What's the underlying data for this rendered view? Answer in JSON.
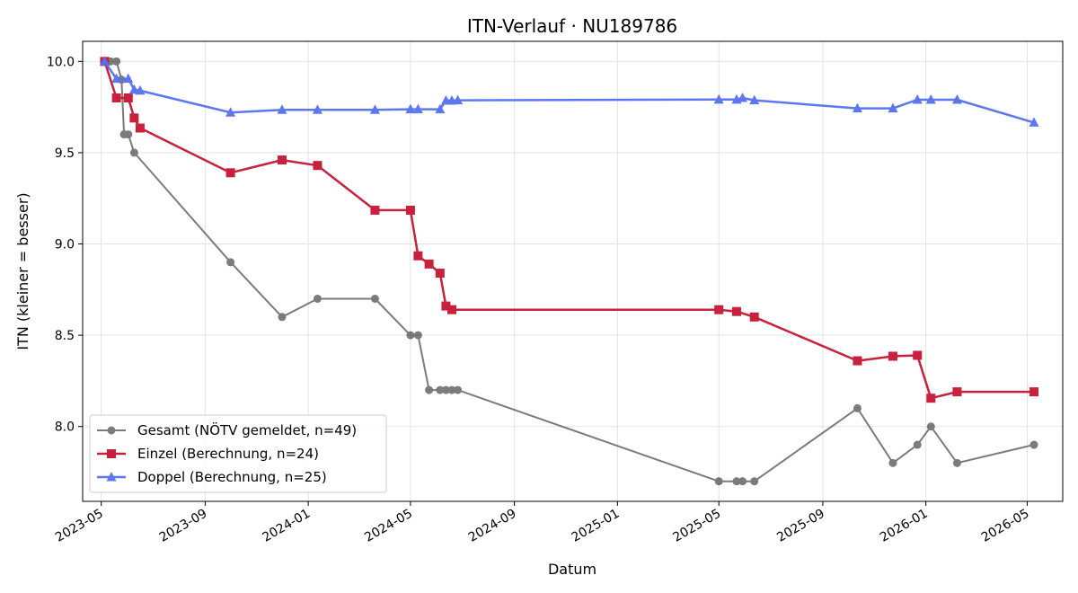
{
  "chart_data": {
    "type": "line",
    "title": "ITN-Verlauf · NU189786",
    "xlabel": "Datum",
    "ylabel": "ITN  (kleiner = besser)",
    "xlim": [
      "2023-04-09",
      "2026-06-12"
    ],
    "ylim": [
      7.59,
      10.11
    ],
    "x_ticks": [
      "2023-05",
      "2023-09",
      "2024-01",
      "2024-05",
      "2024-09",
      "2025-01",
      "2025-05",
      "2025-09",
      "2026-01",
      "2026-05"
    ],
    "y_ticks": [
      8.0,
      8.5,
      9.0,
      9.5,
      10.0
    ],
    "grid": true,
    "legend_position": "lower-left",
    "series": [
      {
        "name": "Gesamt (NÖTV gemeldet, n=49)",
        "color": "#444444",
        "marker": "circle",
        "points": [
          [
            "2023-05-05",
            10.0
          ],
          [
            "2023-05-12",
            10.0
          ],
          [
            "2023-05-19",
            10.0
          ],
          [
            "2023-05-25",
            9.9
          ],
          [
            "2023-05-28",
            9.6
          ],
          [
            "2023-06-02",
            9.6
          ],
          [
            "2023-06-09",
            9.5
          ],
          [
            "2023-10-01",
            8.9
          ],
          [
            "2023-12-01",
            8.6
          ],
          [
            "2024-01-12",
            8.7
          ],
          [
            "2024-03-20",
            8.7
          ],
          [
            "2024-05-01",
            8.5
          ],
          [
            "2024-05-10",
            8.5
          ],
          [
            "2024-05-23",
            8.2
          ],
          [
            "2024-06-05",
            8.2
          ],
          [
            "2024-06-12",
            8.2
          ],
          [
            "2024-06-19",
            8.2
          ],
          [
            "2024-06-26",
            8.2
          ],
          [
            "2025-05-01",
            7.7
          ],
          [
            "2025-05-22",
            7.7
          ],
          [
            "2025-05-29",
            7.7
          ],
          [
            "2025-06-12",
            7.7
          ],
          [
            "2025-10-12",
            8.1
          ],
          [
            "2025-11-23",
            7.8
          ],
          [
            "2025-12-22",
            7.9
          ],
          [
            "2026-01-07",
            8.0
          ],
          [
            "2026-02-07",
            7.8
          ],
          [
            "2026-05-09",
            7.9
          ]
        ]
      },
      {
        "name": "Einzel (Berechnung, n=24)",
        "color": "#c8203d",
        "marker": "square",
        "points": [
          [
            "2023-05-05",
            10.0
          ],
          [
            "2023-05-19",
            9.8
          ],
          [
            "2023-06-02",
            9.8
          ],
          [
            "2023-06-09",
            9.69
          ],
          [
            "2023-06-16",
            9.635
          ],
          [
            "2023-10-01",
            9.39
          ],
          [
            "2023-12-01",
            9.46
          ],
          [
            "2024-01-12",
            9.43
          ],
          [
            "2024-03-20",
            9.185
          ],
          [
            "2024-05-01",
            9.185
          ],
          [
            "2024-05-10",
            8.935
          ],
          [
            "2024-05-23",
            8.89
          ],
          [
            "2024-06-05",
            8.84
          ],
          [
            "2024-06-12",
            8.66
          ],
          [
            "2024-06-19",
            8.64
          ],
          [
            "2025-05-01",
            8.64
          ],
          [
            "2025-05-22",
            8.63
          ],
          [
            "2025-06-12",
            8.6
          ],
          [
            "2025-10-12",
            8.36
          ],
          [
            "2025-11-23",
            8.385
          ],
          [
            "2025-12-22",
            8.39
          ],
          [
            "2026-01-07",
            8.155
          ],
          [
            "2026-02-07",
            8.19
          ],
          [
            "2026-05-09",
            8.19
          ]
        ]
      },
      {
        "name": "Doppel (Berechnung, n=25)",
        "color": "#5470f0",
        "marker": "triangle",
        "points": [
          [
            "2023-05-05",
            10.0
          ],
          [
            "2023-05-19",
            9.905
          ],
          [
            "2023-06-02",
            9.905
          ],
          [
            "2023-06-09",
            9.845
          ],
          [
            "2023-06-16",
            9.84
          ],
          [
            "2023-10-01",
            9.72
          ],
          [
            "2023-12-01",
            9.735
          ],
          [
            "2024-01-12",
            9.735
          ],
          [
            "2024-03-20",
            9.735
          ],
          [
            "2024-05-01",
            9.738
          ],
          [
            "2024-05-10",
            9.738
          ],
          [
            "2024-06-05",
            9.738
          ],
          [
            "2024-06-12",
            9.785
          ],
          [
            "2024-06-19",
            9.785
          ],
          [
            "2024-06-26",
            9.787
          ],
          [
            "2025-05-01",
            9.791
          ],
          [
            "2025-05-22",
            9.791
          ],
          [
            "2025-05-29",
            9.8
          ],
          [
            "2025-06-12",
            9.787
          ],
          [
            "2025-10-12",
            9.743
          ],
          [
            "2025-11-23",
            9.743
          ],
          [
            "2025-12-22",
            9.79
          ],
          [
            "2026-01-07",
            9.79
          ],
          [
            "2026-02-07",
            9.79
          ],
          [
            "2026-05-09",
            9.665
          ]
        ]
      }
    ]
  }
}
